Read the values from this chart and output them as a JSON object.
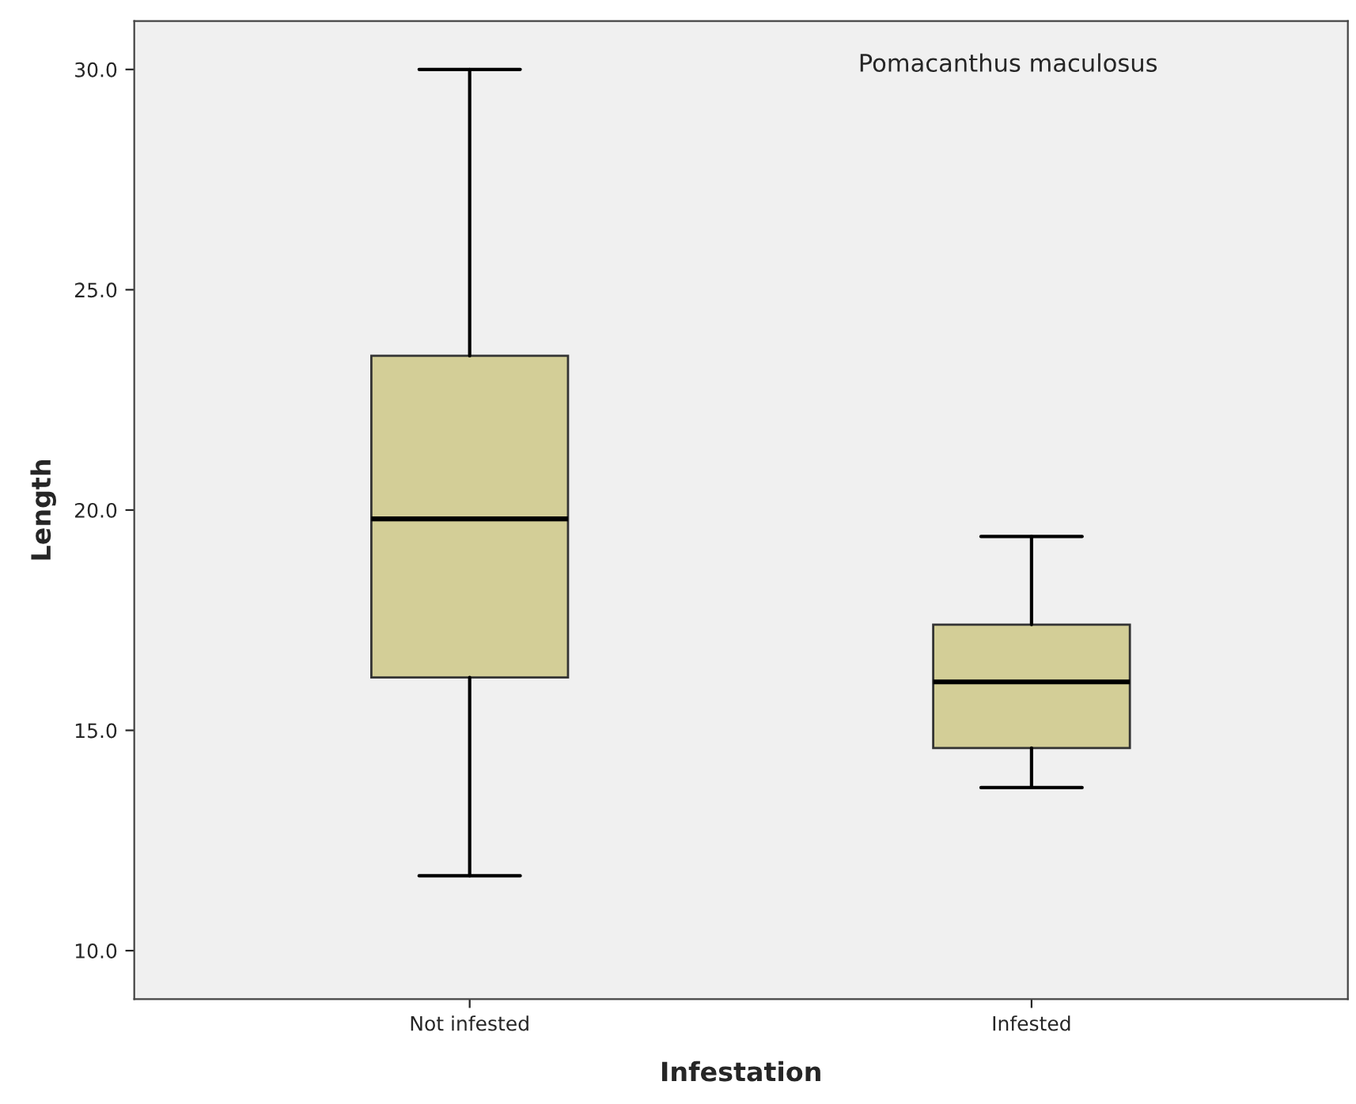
{
  "chart_data": {
    "type": "box",
    "xlabel": "Infestation",
    "ylabel": "Length",
    "categories": [
      "Not infested",
      "Infested"
    ],
    "boxes": [
      {
        "low": 11.7,
        "q1": 16.2,
        "median": 19.8,
        "q3": 23.5,
        "high": 30.0
      },
      {
        "low": 13.7,
        "q1": 14.6,
        "median": 16.1,
        "q3": 17.4,
        "high": 19.4
      }
    ],
    "color": "#d3ce97",
    "ylim": [
      8.9,
      31.1
    ],
    "yticks": [
      {
        "value": 10,
        "label": "10.0"
      },
      {
        "value": 15,
        "label": "15.0"
      },
      {
        "value": 20,
        "label": "20.0"
      },
      {
        "value": 25,
        "label": "25.0"
      },
      {
        "value": 30,
        "label": "30.0"
      }
    ],
    "annotations": [
      "Pomacanthus maculosus"
    ],
    "grid": false
  }
}
